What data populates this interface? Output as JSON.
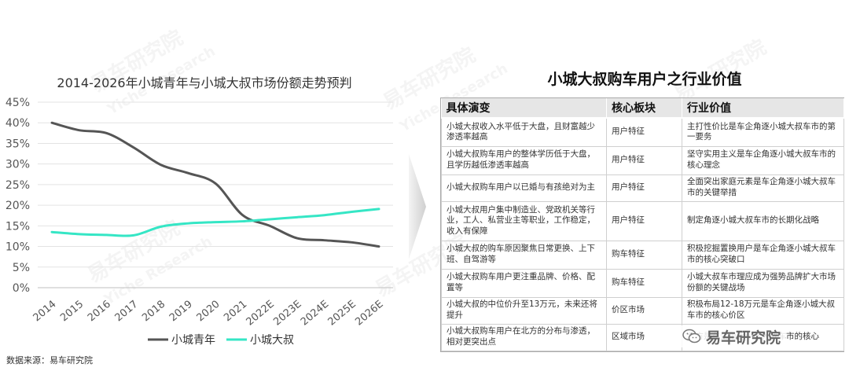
{
  "chart_title": "2014-2026年小城青年与小城大叔市场份额走势预判",
  "source_note": "数据来源：易车研究院",
  "chart_data": {
    "type": "line",
    "x": [
      "2014",
      "2015",
      "2016",
      "2017",
      "2018",
      "2019",
      "2020",
      "2021",
      "2022E",
      "2023E",
      "2024E",
      "2025E",
      "2026E"
    ],
    "series": [
      {
        "name": "小城青年",
        "color": "#555555",
        "values": [
          40.0,
          38.2,
          37.5,
          34.0,
          29.8,
          27.8,
          25.3,
          17.6,
          15.0,
          12.0,
          11.5,
          11.0,
          10.0
        ]
      },
      {
        "name": "小城大叔",
        "color": "#35e6c5",
        "values": [
          13.5,
          13.0,
          12.8,
          12.7,
          14.8,
          15.6,
          15.9,
          16.1,
          16.6,
          17.1,
          17.6,
          18.4,
          19.1
        ]
      }
    ],
    "yticks": [
      "0%",
      "5%",
      "10%",
      "15%",
      "20%",
      "25%",
      "30%",
      "35%",
      "40%",
      "45%"
    ],
    "ylim": [
      0,
      45
    ],
    "grid": "horizontal",
    "legend": "bottom"
  },
  "table": {
    "title": "小城大叔购车用户之行业价值",
    "headers": [
      "具体演变",
      "核心板块",
      "行业价值"
    ],
    "rows": [
      {
        "change": "小城大叔收入水平低于大盘，且财富越少渗透率越高",
        "block": "用户特征",
        "value": "主打性价比是车企角逐小城大叔车市的第一要务"
      },
      {
        "change": "小城大叔购车用户的整体学历低于大盘，且学历越低渗透率越高",
        "block": "用户特征",
        "value": "坚守实用主义是车企角逐小城大叔车市的核心理念"
      },
      {
        "change": "小城大叔购车用户以已婚与有孩绝对为主",
        "block": "用户特征",
        "value": "全面突出家庭元素是车企角逐小城大叔车市的关键举措"
      },
      {
        "change": "小城大叔用户集中制造业、党政机关等行业，工人、私营业主等职业，工作稳定，收入有保障",
        "block": "用户特征",
        "value": "制定角逐小城大叔车市的长期化战略"
      },
      {
        "change": "小城大叔的购车原因聚焦日常更换、上下班、自驾游等",
        "block": "购车特征",
        "value": "积极挖掘置换用户是车企角逐小城大叔车市的核心突破口"
      },
      {
        "change": "小城大叔购车用户更注重品牌、价格、配置等",
        "block": "购车特征",
        "value": "小城大叔车市理应成为强势品牌扩大市场份额的关键战场"
      },
      {
        "change": "小城大叔的中位价升至13万元，未来还将提升",
        "block": "价区市场",
        "value": "积极布局12-18万元是车企角逐小城大叔车市的核心价区"
      },
      {
        "change": "小城大叔购车用户在北方的分布与渗透，相对更突出点",
        "block": "区域市场",
        "value": "北方是车企角逐小城大叔车市的核心"
      }
    ]
  },
  "brand_badge": "易车研究院",
  "watermark_cn": "易车研究院",
  "watermark_en": "Yiche Research"
}
